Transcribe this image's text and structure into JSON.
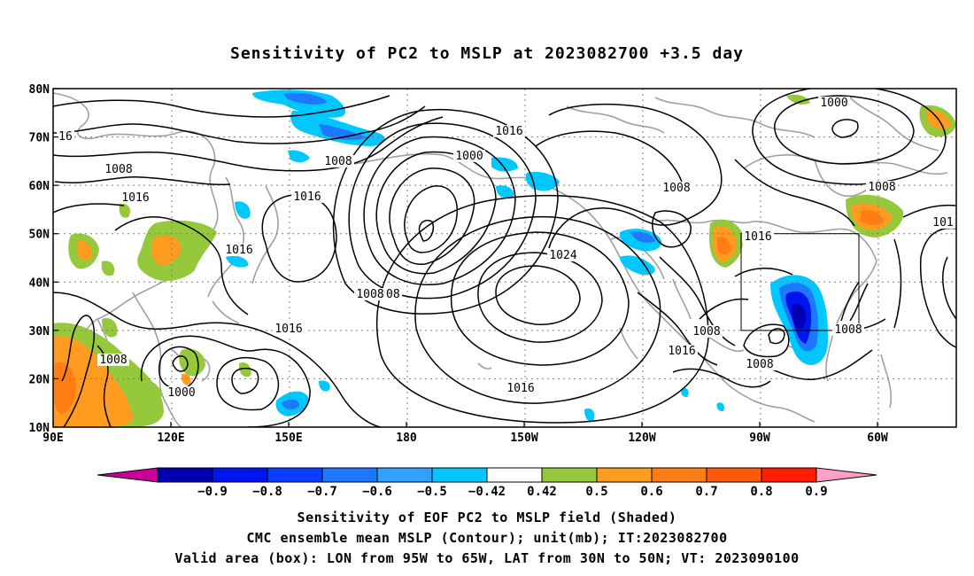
{
  "title": "Sensitivity of PC2 to MSLP at 2023082700 +3.5 day",
  "lat_labels": [
    "80N",
    "70N",
    "60N",
    "50N",
    "40N",
    "30N",
    "20N",
    "10N"
  ],
  "lon_labels": [
    "90E",
    "120E",
    "150E",
    "180",
    "150W",
    "120W",
    "90W",
    "60W"
  ],
  "contour_labels": [
    "16",
    "1008",
    "1008",
    "1000",
    "1016",
    "1016",
    "1016",
    "1008",
    "1008",
    "1016",
    "1000",
    "1008",
    "1024",
    "1016",
    "1008",
    "1016",
    "1008",
    "1008",
    "1008",
    "1016",
    "1000",
    "1008",
    "101",
    "1016"
  ],
  "colorbar": {
    "labels": [
      "−0.9",
      "−0.8",
      "−0.7",
      "−0.6",
      "−0.5",
      "−0.42",
      "0.42",
      "0.5",
      "0.6",
      "0.7",
      "0.8",
      "0.9"
    ],
    "colors": [
      "#0000b0",
      "#0014f0",
      "#0a3cff",
      "#1e78ff",
      "#32a0ff",
      "#00c8ff",
      "#ffffff",
      "#96c83c",
      "#ff9b1e",
      "#ff7d14",
      "#ff5a0a",
      "#ff1e00"
    ],
    "end_low": "#c80096",
    "end_high": "#ffa0c8"
  },
  "captions": [
    "Sensitivity of EOF PC2 to MSLP field (Shaded)",
    "CMC ensemble mean MSLP (Contour); unit(mb); IT:2023082700",
    "Valid area (box): LON from 95W to 65W, LAT from 30N to 50N; VT: 2023090100"
  ]
}
